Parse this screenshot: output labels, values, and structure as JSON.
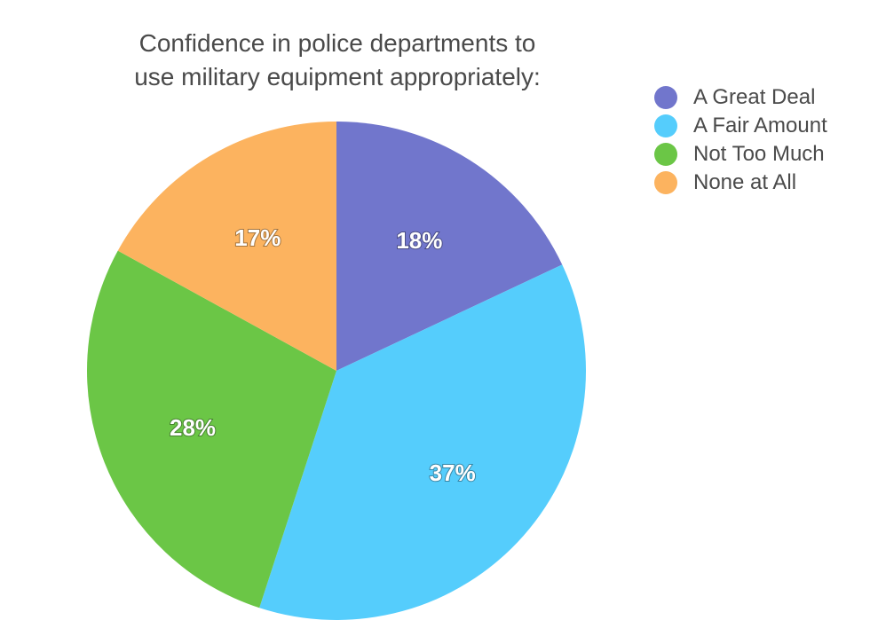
{
  "chart_data": {
    "type": "pie",
    "title": "Confidence in police departments to use military equipment appropriately:",
    "title_lines": [
      "Confidence in police departments to",
      "use military equipment appropriately:"
    ],
    "categories": [
      "A Great Deal",
      "A Fair Amount",
      "Not Too Much",
      "None at All"
    ],
    "values": [
      18,
      37,
      28,
      17
    ],
    "data_labels": [
      "18%",
      "37%",
      "28%",
      "17%"
    ],
    "colors": [
      "#7176cc",
      "#55cdfc",
      "#6bc646",
      "#fcb35f"
    ],
    "legend_position": "top-right",
    "start": "top, clockwise"
  }
}
